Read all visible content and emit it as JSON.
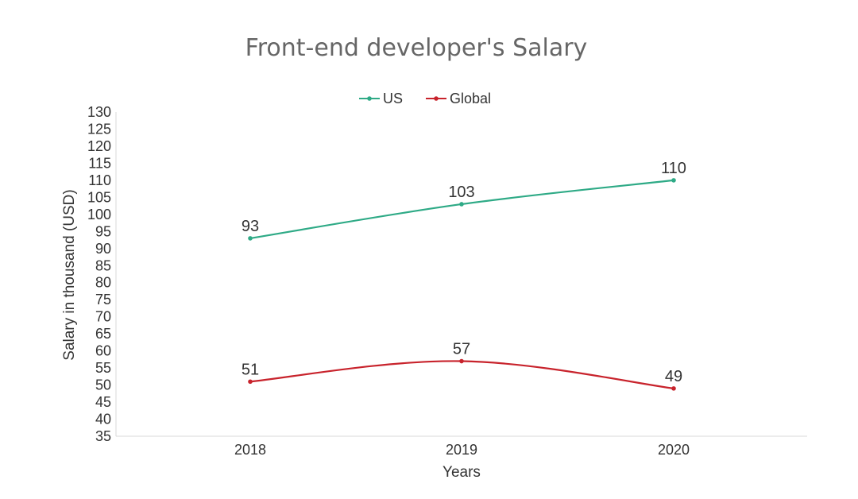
{
  "chart_data": {
    "type": "line",
    "title": "Front-end developer's Salary",
    "xlabel": "Years",
    "ylabel": "Salary in thousand (USD)",
    "categories": [
      "2018",
      "2019",
      "2020"
    ],
    "ylim": [
      35,
      130
    ],
    "yticks": [
      35,
      40,
      45,
      50,
      55,
      60,
      65,
      70,
      75,
      80,
      85,
      90,
      95,
      100,
      105,
      110,
      115,
      120,
      125,
      130
    ],
    "grid": false,
    "legend_position": "top-center",
    "smooth": true,
    "series": [
      {
        "name": "US",
        "color": "#2eaa86",
        "values": [
          93,
          103,
          110
        ]
      },
      {
        "name": "Global",
        "color": "#c8232c",
        "values": [
          51,
          57,
          49
        ]
      }
    ]
  }
}
